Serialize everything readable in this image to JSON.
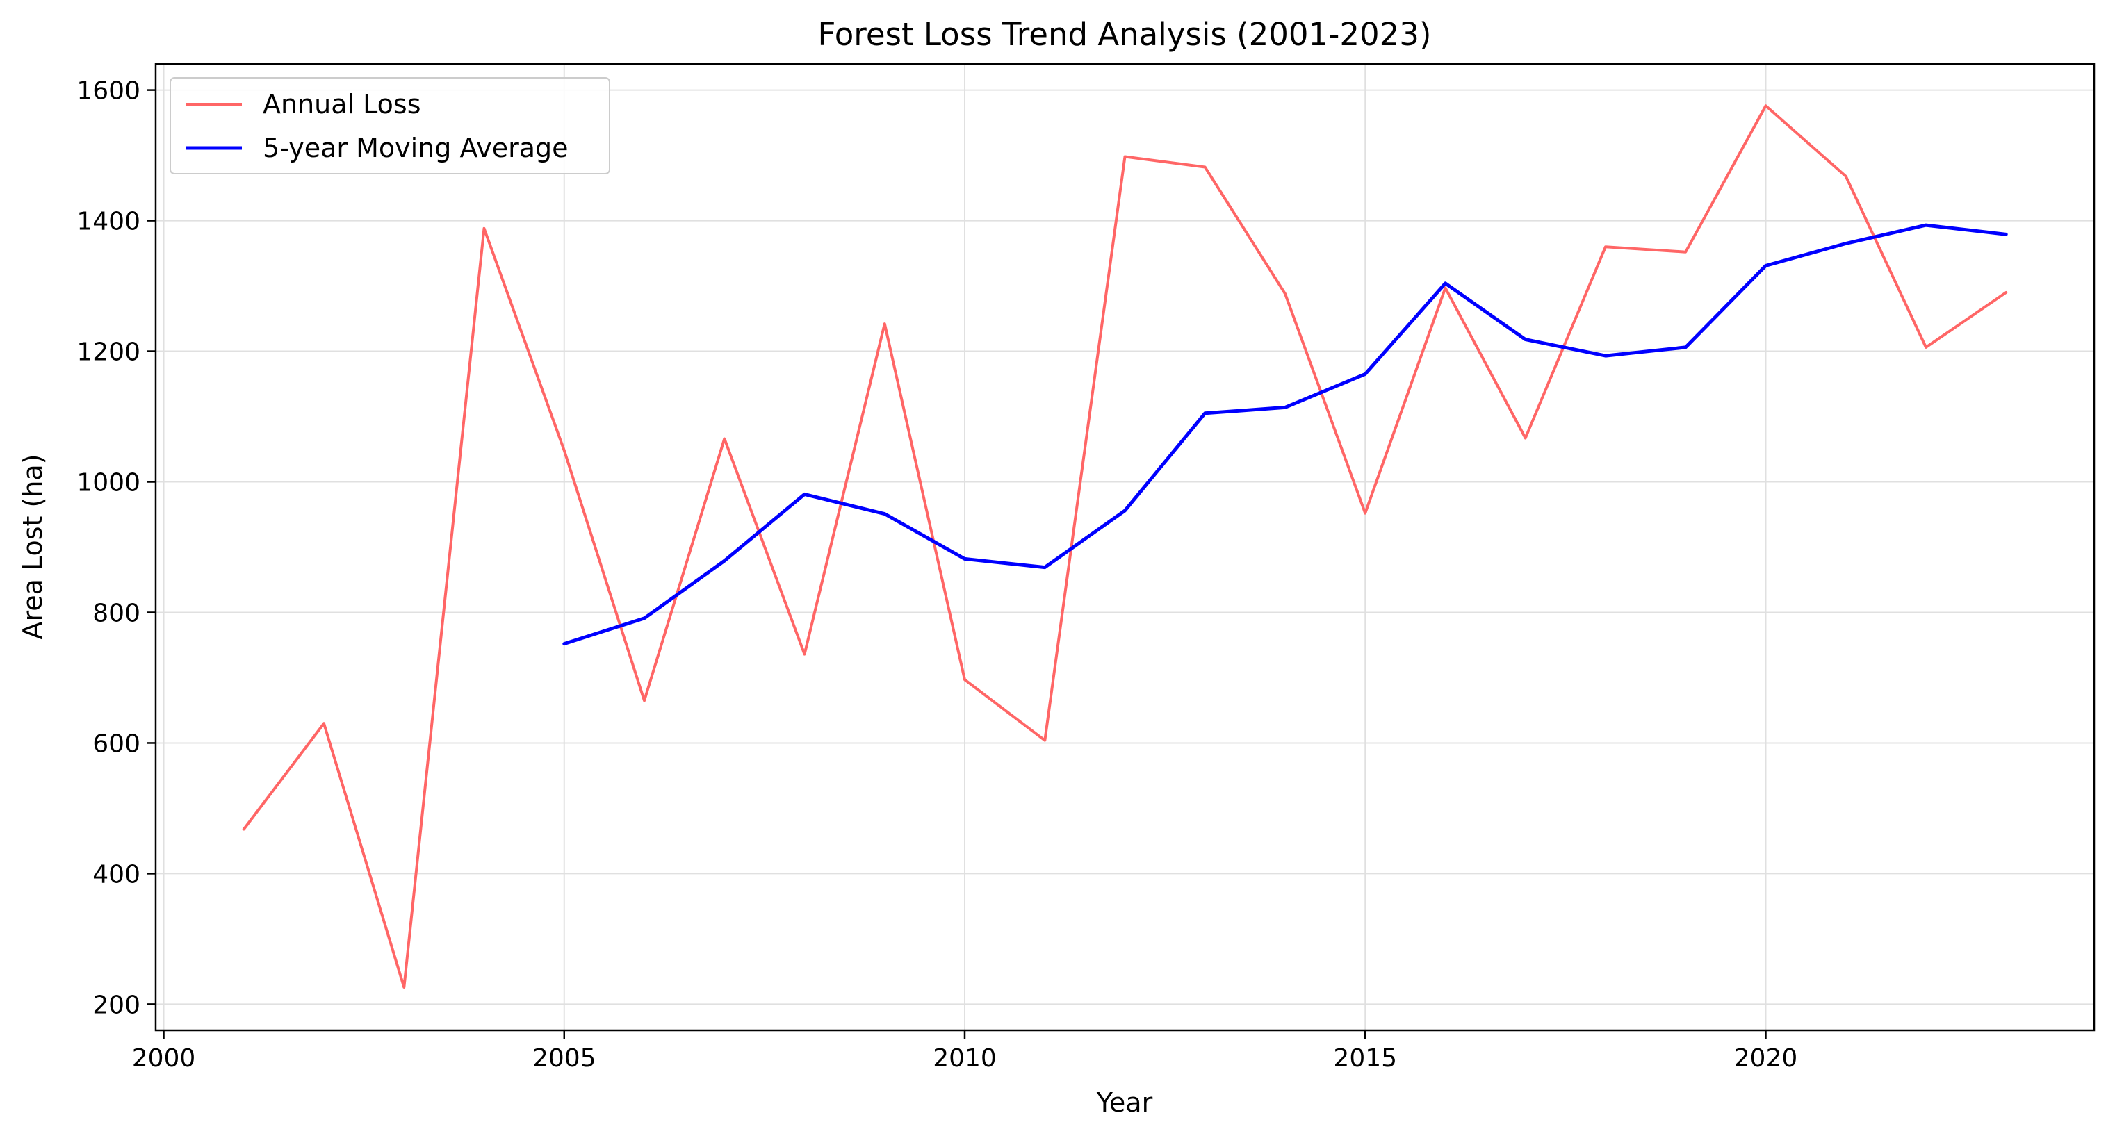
{
  "chart_data": {
    "type": "line",
    "title": "Forest Loss Trend Analysis (2001-2023)",
    "xlabel": "Year",
    "ylabel": "Area Lost (ha)",
    "xlim": [
      1999.9,
      2024.1
    ],
    "ylim": [
      160,
      1640
    ],
    "x_ticks": [
      2000,
      2005,
      2010,
      2015,
      2020
    ],
    "y_ticks": [
      200,
      400,
      600,
      800,
      1000,
      1200,
      1400,
      1600
    ],
    "grid": true,
    "legend_position": "top-left",
    "series": [
      {
        "name": "Annual Loss",
        "color": "#ff6666",
        "x": [
          2001,
          2002,
          2003,
          2004,
          2005,
          2006,
          2007,
          2008,
          2009,
          2010,
          2011,
          2012,
          2013,
          2014,
          2015,
          2016,
          2017,
          2018,
          2019,
          2020,
          2021,
          2022,
          2023
        ],
        "values": [
          468,
          630,
          226,
          1388,
          1048,
          665,
          1066,
          736,
          1242,
          697,
          604,
          1498,
          1482,
          1288,
          952,
          1297,
          1067,
          1360,
          1352,
          1576,
          1468,
          1206,
          1290
        ]
      },
      {
        "name": "5-year Moving Average",
        "color": "#0000ff",
        "x": [
          2005,
          2006,
          2007,
          2008,
          2009,
          2010,
          2011,
          2012,
          2013,
          2014,
          2015,
          2016,
          2017,
          2018,
          2019,
          2020,
          2021,
          2022,
          2023
        ],
        "values": [
          752,
          791,
          879,
          981,
          951,
          882,
          869,
          956,
          1105,
          1114,
          1165,
          1304,
          1218,
          1193,
          1206,
          1331,
          1365,
          1393,
          1379
        ]
      }
    ]
  }
}
